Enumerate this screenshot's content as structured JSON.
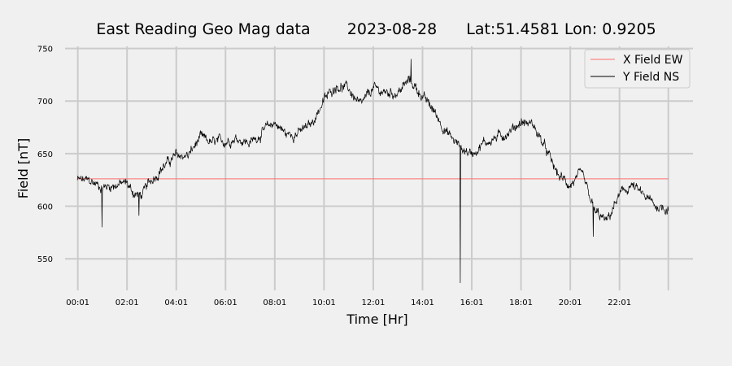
{
  "chart_data": {
    "type": "line",
    "title_parts": [
      "East Reading Geo Mag data",
      "2023-08-28",
      "Lat:51.4581  Lon: 0.9205"
    ],
    "xlabel": "Time  [Hr]",
    "ylabel": "Field  [nT]",
    "x_unit": "hours",
    "xlim": [
      -0.5,
      25.0
    ],
    "ylim": [
      520,
      752
    ],
    "x_ticks": [
      {
        "label": "00:01",
        "value": 0.0167
      },
      {
        "label": "02:01",
        "value": 2.0167
      },
      {
        "label": "04:01",
        "value": 4.0167
      },
      {
        "label": "06:01",
        "value": 6.0167
      },
      {
        "label": "08:01",
        "value": 8.0167
      },
      {
        "label": "10:01",
        "value": 10.0167
      },
      {
        "label": "12:01",
        "value": 12.0167
      },
      {
        "label": "14:01",
        "value": 14.0167
      },
      {
        "label": "16:01",
        "value": 16.0167
      },
      {
        "label": "18:01",
        "value": 18.0167
      },
      {
        "label": "20:01",
        "value": 20.0167
      },
      {
        "label": "22:01",
        "value": 22.0167
      }
    ],
    "y_ticks": [
      550,
      600,
      650,
      700,
      750
    ],
    "grid": true,
    "legend_position": "top-right",
    "series": [
      {
        "name": "X Field EW",
        "color": "#ff6e6e",
        "x": [
          0.0,
          24.0
        ],
        "y": [
          626,
          626
        ]
      },
      {
        "name": "Y Field NS",
        "color": "#000000",
        "noise_amplitude": 5,
        "x": [
          0.0,
          0.5,
          1.0,
          1.5,
          2.0,
          2.3,
          2.6,
          3.0,
          3.5,
          4.0,
          4.5,
          5.0,
          5.5,
          6.0,
          6.5,
          7.0,
          7.5,
          8.0,
          8.5,
          9.0,
          9.5,
          10.0,
          10.5,
          11.0,
          11.5,
          12.0,
          12.5,
          13.0,
          13.5,
          14.0,
          14.5,
          15.0,
          15.4,
          15.6,
          16.0,
          16.5,
          17.0,
          17.5,
          18.0,
          18.5,
          19.0,
          19.5,
          20.0,
          20.5,
          21.0,
          21.5,
          22.0,
          22.5,
          23.0,
          23.5,
          24.0
        ],
        "y": [
          625,
          624,
          618,
          620,
          622,
          612,
          610,
          625,
          638,
          648,
          648,
          665,
          660,
          662,
          665,
          660,
          670,
          680,
          668,
          670,
          678,
          700,
          715,
          712,
          695,
          712,
          708,
          708,
          720,
          705,
          690,
          670,
          660,
          655,
          650,
          660,
          665,
          670,
          680,
          678,
          655,
          630,
          620,
          630,
          595,
          585,
          610,
          620,
          610,
          600,
          598
        ]
      }
    ],
    "spikes": [
      {
        "x": 15.55,
        "y": 527,
        "series": "Y Field NS"
      },
      {
        "x": 1.0,
        "y": 580,
        "series": "Y Field NS"
      },
      {
        "x": 2.5,
        "y": 591,
        "series": "Y Field NS"
      },
      {
        "x": 20.95,
        "y": 571,
        "series": "Y Field NS"
      },
      {
        "x": 13.55,
        "y": 740,
        "series": "Y Field NS"
      }
    ]
  }
}
